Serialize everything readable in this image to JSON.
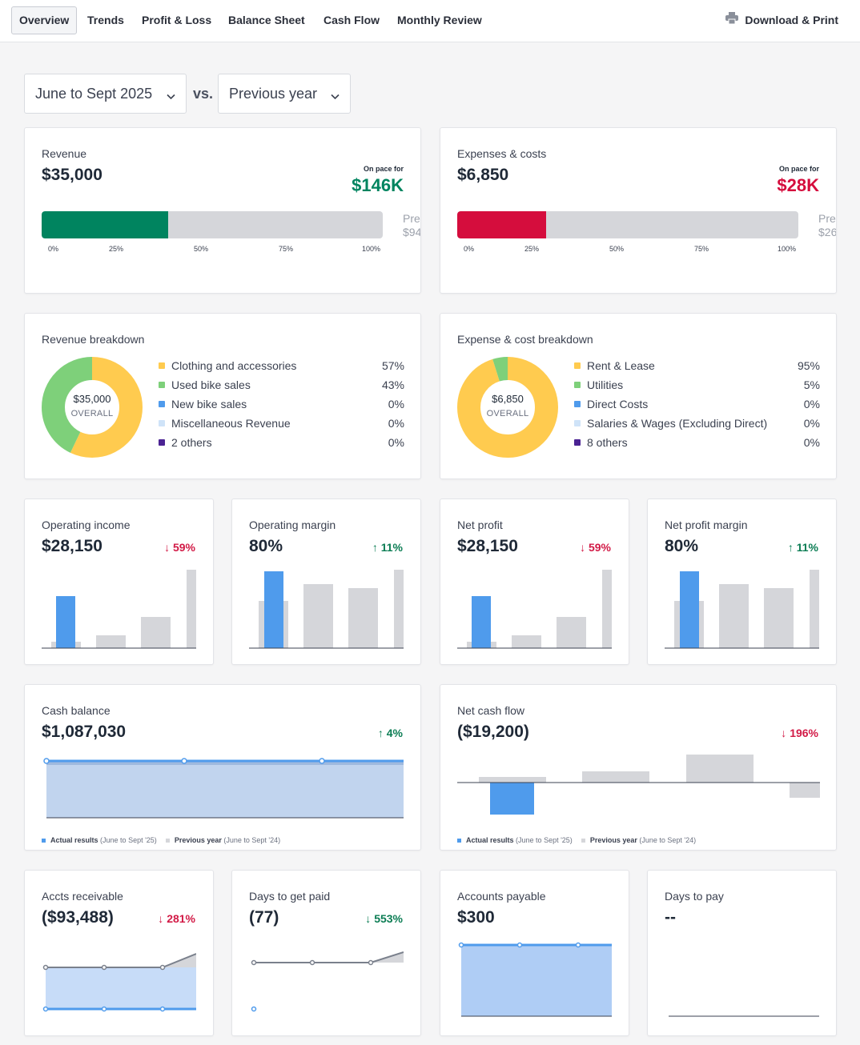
{
  "tabs": [
    "Overview",
    "Trends",
    "Profit & Loss",
    "Balance Sheet",
    "Cash Flow",
    "Monthly Review"
  ],
  "download_label": "Download & Print",
  "filters": {
    "period": "June to Sept 2025",
    "vs": "vs.",
    "compare": "Previous year"
  },
  "colors": {
    "green": "#00845f",
    "red": "#d50d3d",
    "blue": "#4f9bec",
    "grey": "#d5d6da",
    "yellow": "#ffcb4f",
    "lightgreen": "#7ed07a",
    "lightblue": "#cfe3f8",
    "purple": "#4b2393"
  },
  "revenue": {
    "title": "Revenue",
    "value": "$35,000",
    "pace_label": "On pace for",
    "pace_value": "$146K",
    "progress": 0.37,
    "prev_label": "Pre",
    "prev_value": "$94"
  },
  "expenses": {
    "title": "Expenses & costs",
    "value": "$6,850",
    "pace_label": "On pace for",
    "pace_value": "$28K",
    "progress": 0.26,
    "prev_label": "Pre",
    "prev_value": "$26"
  },
  "ticks": [
    "0%",
    "25%",
    "50%",
    "75%",
    "100%"
  ],
  "revenue_breakdown": {
    "title": "Revenue breakdown",
    "total": "$35,000",
    "total_label": "OVERALL",
    "items": [
      {
        "name": "Clothing and accessories",
        "pct": "57%",
        "value": 57,
        "color": "#ffcb4f"
      },
      {
        "name": "Used bike sales",
        "pct": "43%",
        "value": 43,
        "color": "#7ed07a"
      },
      {
        "name": "New bike sales",
        "pct": "0%",
        "value": 0,
        "color": "#4f9bec"
      },
      {
        "name": "Miscellaneous Revenue",
        "pct": "0%",
        "value": 0,
        "color": "#cfe3f8"
      },
      {
        "name": "2 others",
        "pct": "0%",
        "value": 0,
        "color": "#4b2393"
      }
    ]
  },
  "expense_breakdown": {
    "title": "Expense & cost breakdown",
    "total": "$6,850",
    "total_label": "OVERALL",
    "items": [
      {
        "name": "Rent & Lease",
        "pct": "95%",
        "value": 95,
        "color": "#ffcb4f"
      },
      {
        "name": "Utilities",
        "pct": "5%",
        "value": 5,
        "color": "#7ed07a"
      },
      {
        "name": "Direct Costs",
        "pct": "0%",
        "value": 0,
        "color": "#4f9bec"
      },
      {
        "name": "Salaries & Wages (Excluding Direct)",
        "pct": "0%",
        "value": 0,
        "color": "#cfe3f8"
      },
      {
        "name": "8 others",
        "pct": "0%",
        "value": 0,
        "color": "#4b2393"
      }
    ]
  },
  "kpis": [
    {
      "title": "Operating income",
      "value": "$28,150",
      "delta": "59%",
      "dir": "down"
    },
    {
      "title": "Operating margin",
      "value": "80%",
      "delta": "11%",
      "dir": "up"
    },
    {
      "title": "Net profit",
      "value": "$28,150",
      "delta": "59%",
      "dir": "down"
    },
    {
      "title": "Net profit margin",
      "value": "80%",
      "delta": "11%",
      "dir": "up"
    }
  ],
  "cash_balance": {
    "title": "Cash balance",
    "value": "$1,087,030",
    "delta": "4%",
    "dir": "up"
  },
  "net_cash_flow": {
    "title": "Net cash flow",
    "value": "($19,200)",
    "delta": "196%",
    "dir": "down"
  },
  "legend": {
    "actual": "Actual results",
    "actual_range": "(June to Sept '25)",
    "previous": "Previous year",
    "previous_range": "(June to Sept '24)"
  },
  "bottom": [
    {
      "title": "Accts receivable",
      "value": "($93,488)",
      "delta": "281%",
      "dir": "down"
    },
    {
      "title": "Days to get paid",
      "value": "(77)",
      "delta": "553%",
      "dir": "up"
    },
    {
      "title": "Accounts payable",
      "value": "$300",
      "delta": "",
      "dir": ""
    },
    {
      "title": "Days to pay",
      "value": "--",
      "delta": "",
      "dir": ""
    }
  ],
  "icons": {
    "printer": "printer-icon",
    "chevron": "chevron-down-icon",
    "arrow_up": "arrow-up-icon",
    "arrow_down": "arrow-down-icon"
  }
}
